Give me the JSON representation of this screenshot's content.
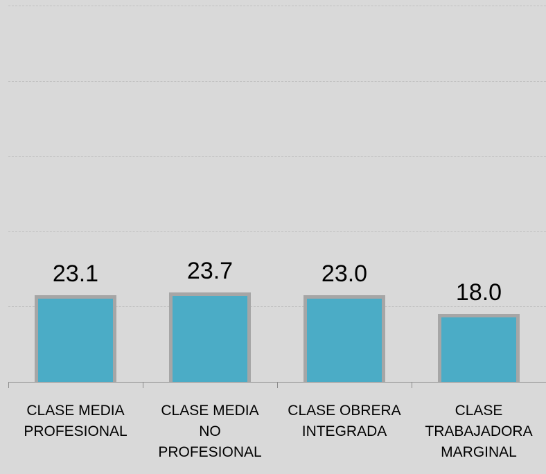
{
  "chart_data": {
    "type": "bar",
    "categories": [
      "CLASE MEDIA\nPROFESIONAL",
      "CLASE MEDIA\nNO\nPROFESIONAL",
      "CLASE OBRERA\nINTEGRADA",
      "CLASE\nTRABAJADORA\nMARGINAL"
    ],
    "values": [
      23.1,
      23.7,
      23.0,
      18.0
    ],
    "value_labels": [
      "23.1",
      "23.7",
      "23.0",
      "18.0"
    ],
    "color": "#4bacc6",
    "ylim": [
      0,
      100
    ],
    "yticks": [
      0,
      20,
      40,
      60,
      80,
      100
    ],
    "grid": true
  }
}
